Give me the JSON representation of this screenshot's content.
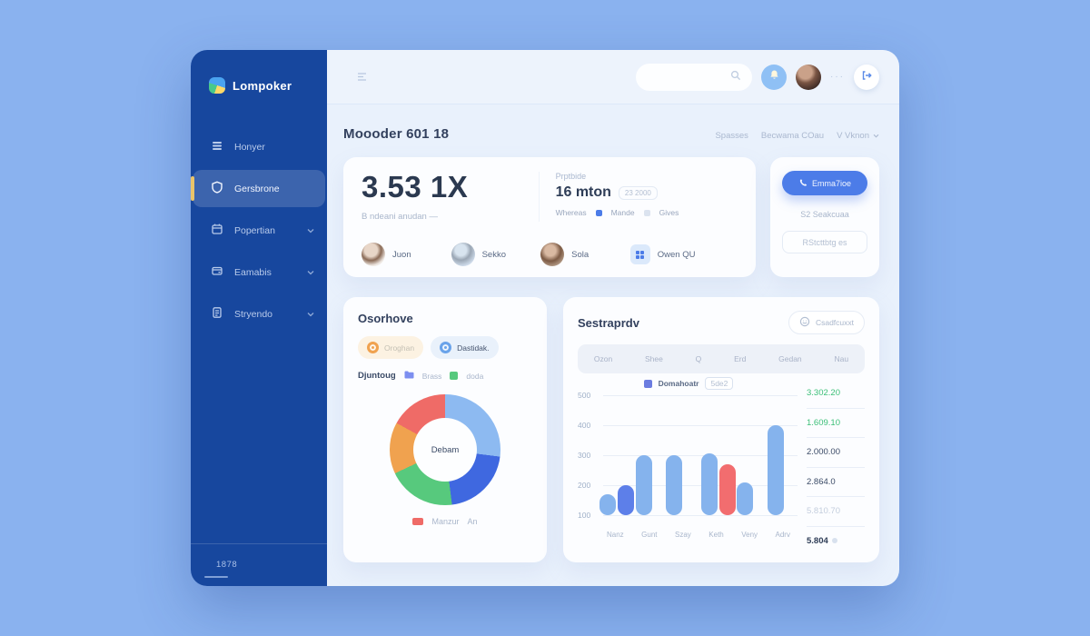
{
  "app": {
    "logo_text": "Lompoker",
    "sidebar": {
      "items": [
        {
          "label": "Honyer"
        },
        {
          "label": "Gersbrone"
        },
        {
          "label": "Popertian"
        },
        {
          "label": "Eamabis"
        },
        {
          "label": "Stryendo"
        }
      ],
      "footer_text": "1878"
    },
    "header": {
      "more_text": "···"
    },
    "page": {
      "title": "Moooder 601 18",
      "links": [
        "Spasses",
        "Becwama COau",
        "V Vknon"
      ]
    }
  },
  "stats_card": {
    "big_value": "3.53 1X",
    "big_caption": "B ndeani anudan —",
    "right_label": "Prptbide",
    "right_value": "16 mton",
    "right_badge": "23 2000",
    "legend_plain": "Whereas",
    "legend_blue": "Mande",
    "legend_gray": "Gives",
    "people": [
      {
        "name": "Juon"
      },
      {
        "name": "Sekko"
      },
      {
        "name": "Sola"
      }
    ],
    "link_item": "Owen QU"
  },
  "action_card": {
    "primary": "Emma7ioe",
    "secondary": "S2 Seakcuaa",
    "tertiary": "RStcttbtg es"
  },
  "donut_card": {
    "title": "Osorhove",
    "badge_orange": "Oroghan",
    "badge_blue": "Dastidak.",
    "row_label": "Djuntoug",
    "row_legend_blue": "Brass",
    "row_legend_green": "doda",
    "center_label": "Debam",
    "bottom_legend": "Manzur",
    "bottom_legend2": "An",
    "chart": {
      "type": "pie",
      "slices": [
        {
          "label": "light-blue",
          "value": 27,
          "color": "#8dbaf1"
        },
        {
          "label": "royal-blue",
          "value": 21,
          "color": "#3f68e0"
        },
        {
          "label": "green",
          "value": 20,
          "color": "#57c97d"
        },
        {
          "label": "orange",
          "value": 15,
          "color": "#f0a24f"
        },
        {
          "label": "red",
          "value": 17,
          "color": "#ef6b67"
        }
      ]
    }
  },
  "bar_card": {
    "title": "Sestraprdv",
    "action_button": "Csadfcuxxt",
    "tabs": [
      "Ozon",
      "Shee",
      "Q",
      "Erd",
      "Gedan",
      "Nau"
    ],
    "legend_label": "Domahoatr",
    "legend_badge": "5de2",
    "chart": {
      "type": "bar",
      "ylim": [
        100,
        500
      ],
      "yticks": [
        "500",
        "400",
        "300",
        "200",
        "100"
      ],
      "xlabels": [
        "Nanz",
        "Gunt",
        "Szay",
        "Keth",
        "Veny",
        "Adrv"
      ],
      "bars": [
        {
          "x_pct": 13.5,
          "value": 170,
          "color": "#85b3ed"
        },
        {
          "x_pct": 22,
          "value": 200,
          "color": "#5d7fe9"
        },
        {
          "x_pct": 30,
          "value": 300,
          "color": "#85b3ed"
        },
        {
          "x_pct": 44,
          "value": 300,
          "color": "#85b3ed"
        },
        {
          "x_pct": 60,
          "value": 305,
          "color": "#85b3ed"
        },
        {
          "x_pct": 68,
          "value": 270,
          "color": "#f26d6f"
        },
        {
          "x_pct": 76,
          "value": 210,
          "color": "#85b3ed"
        },
        {
          "x_pct": 90,
          "value": 400,
          "color": "#85b3ed"
        }
      ]
    },
    "side_values": [
      {
        "text": "3.302.20",
        "tone": "green"
      },
      {
        "text": "1.609.10",
        "tone": "green"
      },
      {
        "text": "2.000.00",
        "tone": "dark"
      },
      {
        "text": "2.864.0",
        "tone": "dark"
      },
      {
        "text": "5.810.70",
        "tone": "muted"
      },
      {
        "text": "5.804",
        "tone": "bold"
      }
    ]
  },
  "colors": {
    "desktop": "#8ab2ef",
    "sidebar": "#17479e",
    "accent": "#e9c46a",
    "primary_blue": "#4c7ce8",
    "green_value": "#3bbf77",
    "bar_blue": "#85b3ed",
    "bar_indigo": "#5d7fe9",
    "bar_red": "#f26d6f"
  }
}
